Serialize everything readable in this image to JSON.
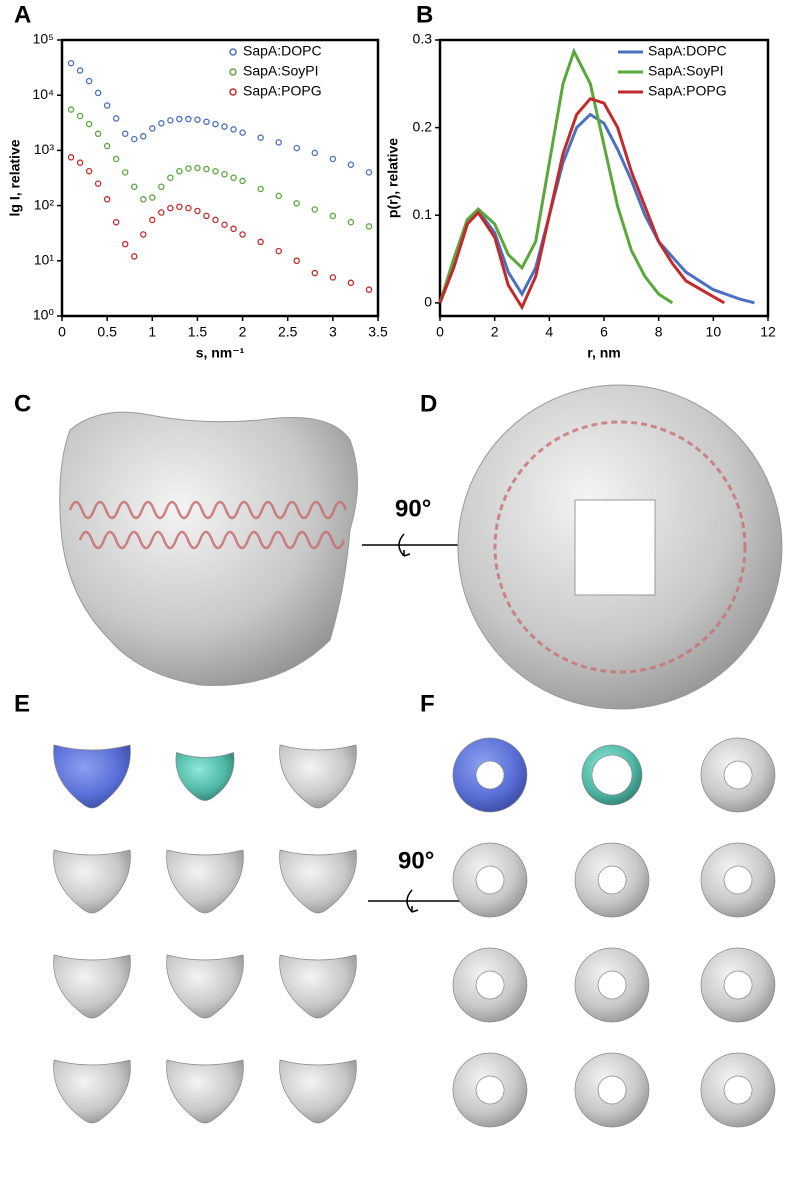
{
  "chart_data": [
    {
      "type": "scatter",
      "panel": "A",
      "xlabel": "s, nm⁻¹",
      "ylabel": "lg I, relative",
      "log_y": true,
      "legend": "upper right",
      "x": [
        0.1,
        0.2,
        0.3,
        0.4,
        0.5,
        0.6,
        0.7,
        0.8,
        0.9,
        1.0,
        1.1,
        1.2,
        1.3,
        1.4,
        1.5,
        1.6,
        1.7,
        1.8,
        1.9,
        2.0,
        2.2,
        2.4,
        2.6,
        2.8,
        3.0,
        3.2,
        3.4
      ],
      "series": [
        {
          "name": "SapA:DOPC",
          "color": "#4a70c2",
          "values": [
            38000,
            28000,
            18000,
            11000,
            6500,
            3800,
            2000,
            1600,
            1800,
            2500,
            3100,
            3500,
            3700,
            3700,
            3600,
            3300,
            3000,
            2700,
            2400,
            2100,
            1700,
            1400,
            1100,
            900,
            700,
            550,
            400
          ]
        },
        {
          "name": "SapA:SoyPI",
          "color": "#5aa83c",
          "values": [
            5500,
            4200,
            3000,
            2000,
            1200,
            700,
            400,
            220,
            130,
            140,
            220,
            320,
            420,
            470,
            480,
            460,
            420,
            370,
            320,
            280,
            200,
            150,
            110,
            85,
            65,
            50,
            42
          ]
        },
        {
          "name": "SapA:POPG",
          "color": "#c42a2a",
          "values": [
            750,
            600,
            420,
            250,
            130,
            50,
            20,
            12,
            30,
            55,
            75,
            90,
            95,
            90,
            80,
            65,
            55,
            45,
            38,
            30,
            22,
            15,
            10,
            6,
            5,
            4,
            3
          ]
        }
      ],
      "xlim": [
        0,
        3.5
      ],
      "xticks": [
        0,
        0.5,
        1,
        1.5,
        2,
        2.5,
        3,
        3.5
      ],
      "ylim": [
        1,
        100000
      ],
      "yticks": [
        {
          "value": 1,
          "label": "10⁰"
        },
        {
          "value": 10,
          "label": "10¹"
        },
        {
          "value": 100,
          "label": "10²"
        },
        {
          "value": 1000,
          "label": "10³"
        },
        {
          "value": 10000,
          "label": "10⁴"
        },
        {
          "value": 100000,
          "label": "10⁵"
        }
      ]
    },
    {
      "type": "line",
      "panel": "B",
      "xlabel": "r, nm",
      "ylabel": "p(r), relative",
      "legend": "upper right",
      "series": [
        {
          "name": "SapA:DOPC",
          "color": "#4a70c2",
          "x": [
            0,
            0.5,
            1,
            1.4,
            2,
            2.5,
            3,
            3.5,
            4,
            4.5,
            5,
            5.5,
            6,
            6.5,
            7,
            7.5,
            8,
            9,
            10,
            11,
            11.5
          ],
          "values": [
            0,
            0.04,
            0.09,
            0.105,
            0.08,
            0.035,
            0.01,
            0.04,
            0.1,
            0.16,
            0.2,
            0.215,
            0.205,
            0.175,
            0.14,
            0.1,
            0.07,
            0.035,
            0.015,
            0.004,
            0
          ]
        },
        {
          "name": "SapA:SoyPI",
          "color": "#5aa83c",
          "x": [
            0,
            0.5,
            1,
            1.4,
            2,
            2.5,
            3,
            3.5,
            4,
            4.5,
            4.9,
            5.5,
            6,
            6.5,
            7,
            7.5,
            8,
            8.5
          ],
          "values": [
            0,
            0.05,
            0.095,
            0.107,
            0.09,
            0.055,
            0.04,
            0.07,
            0.16,
            0.25,
            0.287,
            0.25,
            0.18,
            0.11,
            0.06,
            0.03,
            0.01,
            0
          ]
        },
        {
          "name": "SapA:POPG",
          "color": "#c42a2a",
          "x": [
            0,
            0.5,
            1,
            1.4,
            2,
            2.5,
            3,
            3.5,
            4,
            4.5,
            5,
            5.5,
            6,
            6.5,
            7,
            7.5,
            8,
            8.5,
            9,
            10,
            10.4
          ],
          "values": [
            0,
            0.04,
            0.09,
            0.103,
            0.075,
            0.02,
            -0.005,
            0.03,
            0.1,
            0.17,
            0.215,
            0.233,
            0.228,
            0.2,
            0.15,
            0.11,
            0.07,
            0.045,
            0.025,
            0.007,
            0
          ]
        }
      ],
      "xlim": [
        0,
        12
      ],
      "xticks": [
        0,
        2,
        4,
        6,
        8,
        10,
        12
      ],
      "ylim": [
        -0.015,
        0.3
      ],
      "yticks": [
        0,
        0.1,
        0.2,
        0.3
      ]
    }
  ],
  "panel_labels": [
    "C",
    "D",
    "E",
    "F"
  ],
  "rotation_labels": [
    "90°",
    "90°"
  ]
}
